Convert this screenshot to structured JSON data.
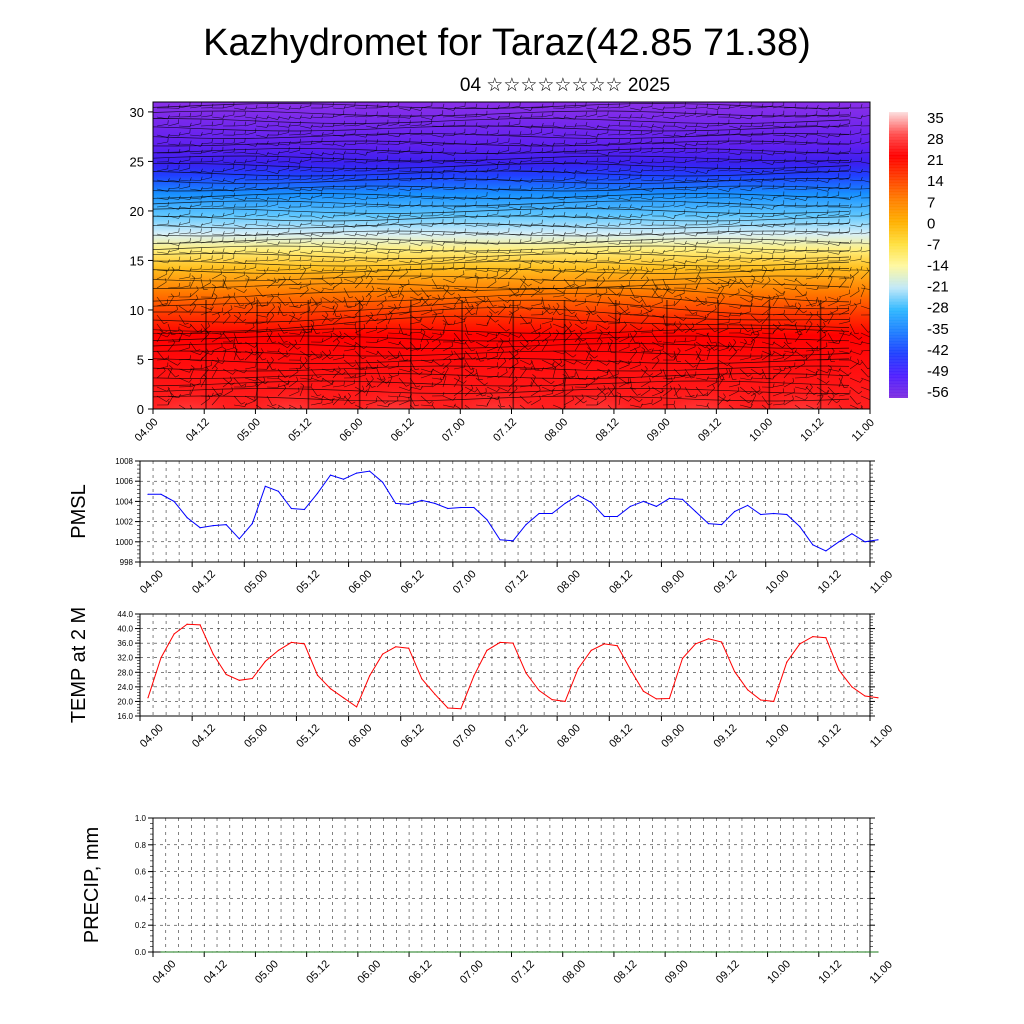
{
  "title": "Kazhydromet for Taraz(42.85 71.38)",
  "subtitle": "04 ☆☆☆☆☆☆☆☆ 2025",
  "time_labels": [
    "04.00",
    "04.12",
    "05.00",
    "05.12",
    "06.00",
    "06.12",
    "07.00",
    "07.12",
    "08.00",
    "08.12",
    "09.00",
    "09.12",
    "10.00",
    "10.12",
    "11.00"
  ],
  "colors": {
    "pmsl_line": "#0000ff",
    "temp_line": "#ff0000",
    "precip_line": "#1a7a1a",
    "frame": "#000000"
  },
  "chart_data": [
    {
      "type": "heatmap",
      "name_shown": "",
      "x_labels": [
        "04.00",
        "04.12",
        "05.00",
        "05.12",
        "06.00",
        "06.12",
        "07.00",
        "07.12",
        "08.00",
        "08.12",
        "09.00",
        "09.12",
        "10.00",
        "10.12",
        "11.00"
      ],
      "y_ticks": [
        0,
        5,
        10,
        15,
        20,
        25,
        30
      ],
      "ylim": [
        0,
        31
      ],
      "colorbar": {
        "labels": [
          "35",
          "28",
          "21",
          "14",
          "7",
          "0",
          "-7",
          "-14",
          "-21",
          "-28",
          "-35",
          "-42",
          "-49",
          "-56"
        ],
        "colors": [
          "#fce0e0",
          "#ff5050",
          "#ff0000",
          "#ff4000",
          "#ff8000",
          "#ffb000",
          "#ffe040",
          "#fff8a0",
          "#c0e8f8",
          "#30b8ff",
          "#2080ff",
          "#2040ff",
          "#5020ff",
          "#8030e0"
        ]
      },
      "wind_barbs": true
    },
    {
      "type": "line",
      "ylabel": "PMSL",
      "ylim": [
        998,
        1008
      ],
      "y_ticks": [
        "998",
        "1000",
        "1002",
        "1004",
        "1006",
        "1008"
      ],
      "x_labels": [
        "04.00",
        "04.12",
        "05.00",
        "05.12",
        "06.00",
        "06.12",
        "07.00",
        "07.12",
        "08.00",
        "08.12",
        "09.00",
        "09.12",
        "10.00",
        "10.12",
        "11.00"
      ],
      "x_step_hours": 3,
      "values": [
        1004.7,
        1004.7,
        1004.0,
        1002.4,
        1001.4,
        1001.6,
        1001.7,
        1000.3,
        1001.8,
        1005.5,
        1005.0,
        1003.3,
        1003.2,
        1004.8,
        1006.6,
        1006.2,
        1006.8,
        1007.0,
        1005.9,
        1003.8,
        1003.7,
        1004.1,
        1003.8,
        1003.3,
        1003.4,
        1003.4,
        1002.2,
        1000.2,
        1000.1,
        1001.7,
        1002.8,
        1002.8,
        1003.8,
        1004.6,
        1003.9,
        1002.5,
        1002.5,
        1003.5,
        1004.0,
        1003.5,
        1004.3,
        1004.2,
        1003.0,
        1001.8,
        1001.7,
        1003.0,
        1003.6,
        1002.7,
        1002.8,
        1002.7,
        1001.5,
        999.7,
        999.1,
        1000.0,
        1000.8,
        1000.0,
        1000.2
      ]
    },
    {
      "type": "line",
      "ylabel": "TEMP at 2 M",
      "ylim": [
        16,
        44
      ],
      "y_ticks": [
        "16.0",
        "20.0",
        "24.0",
        "28.0",
        "32.0",
        "36.0",
        "40.0",
        "44.0"
      ],
      "x_labels": [
        "04.00",
        "04.12",
        "05.00",
        "05.12",
        "06.00",
        "06.12",
        "07.00",
        "07.12",
        "08.00",
        "08.12",
        "09.00",
        "09.12",
        "10.00",
        "10.12",
        "11.00"
      ],
      "x_step_hours": 3,
      "values": [
        21.0,
        32.0,
        38.5,
        41.2,
        41.0,
        33.0,
        27.4,
        25.8,
        26.3,
        31.0,
        34.0,
        36.2,
        35.8,
        27.2,
        23.5,
        21.0,
        18.5,
        27.0,
        33.0,
        35.0,
        34.6,
        26.2,
        22.0,
        18.2,
        18.0,
        27.0,
        34.0,
        36.2,
        36.0,
        27.8,
        23.0,
        20.5,
        20.0,
        29.0,
        34.0,
        35.8,
        35.3,
        28.8,
        22.8,
        20.7,
        20.8,
        31.8,
        35.8,
        37.2,
        36.3,
        28.2,
        23.2,
        20.4,
        20.0,
        30.8,
        35.8,
        37.8,
        37.5,
        28.6,
        24.0,
        21.5,
        21.0
      ]
    },
    {
      "type": "line",
      "ylabel": "PRECIP, mm",
      "ylim": [
        0,
        1
      ],
      "y_ticks": [
        "0.0",
        "0.2",
        "0.4",
        "0.6",
        "0.8",
        "1.0"
      ],
      "x_labels": [
        "04.00",
        "04.12",
        "05.00",
        "05.12",
        "06.00",
        "06.12",
        "07.00",
        "07.12",
        "08.00",
        "08.12",
        "09.00",
        "09.12",
        "10.00",
        "10.12",
        "11.00"
      ],
      "x_step_hours": 3,
      "values": [
        0,
        0,
        0,
        0,
        0,
        0,
        0,
        0,
        0,
        0,
        0,
        0,
        0,
        0,
        0,
        0,
        0,
        0,
        0,
        0,
        0,
        0,
        0,
        0,
        0,
        0,
        0,
        0,
        0,
        0,
        0,
        0,
        0,
        0,
        0,
        0,
        0,
        0,
        0,
        0,
        0,
        0,
        0,
        0,
        0,
        0,
        0,
        0,
        0,
        0,
        0,
        0,
        0,
        0,
        0,
        0,
        0
      ]
    }
  ]
}
